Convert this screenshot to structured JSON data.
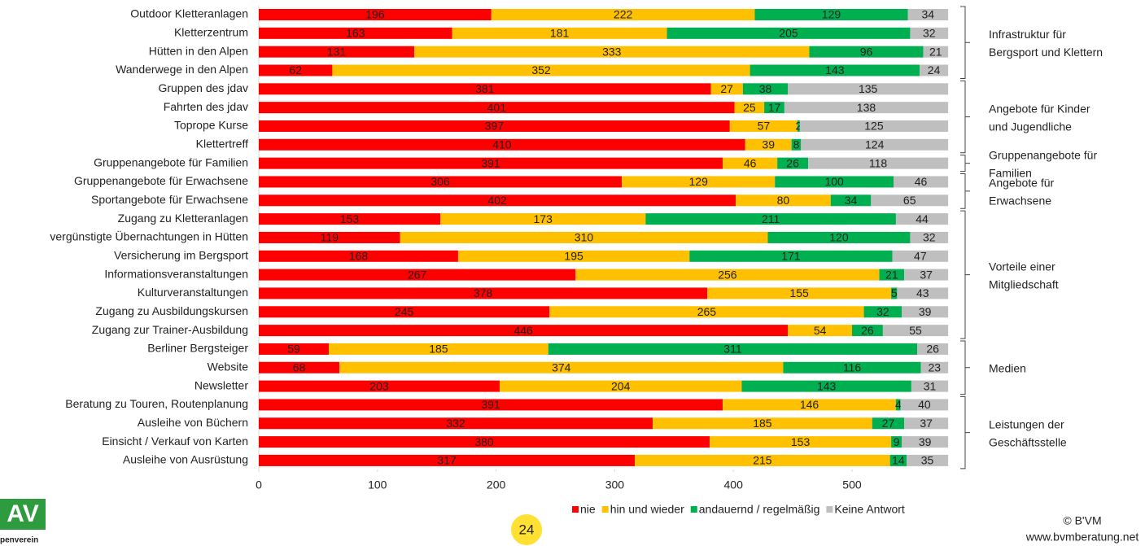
{
  "chart_data": {
    "type": "stacked_barh",
    "categories": [
      "Outdoor Kletteranlagen",
      "Kletterzentrum",
      "Hütten in den Alpen",
      "Wanderwege in den Alpen",
      "Gruppen des jdav",
      "Fahrten des jdav",
      "Toprope Kurse",
      "Klettertreff",
      "Gruppenangebote für Familien",
      "Gruppenangebote für Erwachsene",
      "Sportangebote für Erwachsene",
      "Zugang zu Kletteranlagen",
      "vergünstigte Übernachtungen in Hütten",
      "Versicherung im Bergsport",
      "Informationsveranstaltungen",
      "Kulturveranstaltungen",
      "Zugang zu Ausbildungskursen",
      "Zugang zur Trainer-Ausbildung",
      "Berliner Bergsteiger",
      "Website",
      "Newsletter",
      "Beratung zu Touren, Routenplanung",
      "Ausleihe von Büchern",
      "Einsicht / Verkauf von Karten",
      "Ausleihe von Ausrüstung"
    ],
    "series": [
      {
        "name": "nie",
        "color": "#ff0000",
        "values": [
          196,
          163,
          131,
          62,
          381,
          401,
          397,
          410,
          391,
          306,
          402,
          153,
          119,
          168,
          267,
          378,
          245,
          446,
          59,
          68,
          203,
          391,
          332,
          380,
          317
        ]
      },
      {
        "name": "hin und wieder",
        "color": "#ffc000",
        "values": [
          222,
          181,
          333,
          352,
          27,
          25,
          57,
          39,
          46,
          129,
          80,
          173,
          310,
          195,
          256,
          155,
          265,
          54,
          185,
          374,
          204,
          146,
          185,
          153,
          215
        ]
      },
      {
        "name": "andauernd / regelmäßig",
        "color": "#00b050",
        "values": [
          129,
          205,
          96,
          143,
          38,
          17,
          2,
          8,
          26,
          100,
          34,
          211,
          120,
          171,
          21,
          5,
          32,
          26,
          311,
          116,
          143,
          4,
          27,
          9,
          14
        ]
      },
      {
        "name": "Keine Antwort",
        "color": "#bfbfbf",
        "values": [
          34,
          32,
          21,
          24,
          135,
          138,
          125,
          124,
          118,
          46,
          65,
          44,
          32,
          47,
          37,
          43,
          39,
          55,
          26,
          23,
          31,
          40,
          37,
          39,
          35
        ]
      }
    ],
    "xlim": [
      0,
      583
    ],
    "xticks": [
      0,
      100,
      200,
      300,
      400,
      500
    ],
    "groups": [
      {
        "label": [
          "Infrastruktur für",
          "Bergsport und Klettern"
        ],
        "start": 0,
        "end": 3
      },
      {
        "label": [
          "Angebote für Kinder",
          "und Jugendliche"
        ],
        "start": 4,
        "end": 7
      },
      {
        "label": [
          "Gruppenangebote für",
          "Familien"
        ],
        "start": 8,
        "end": 8
      },
      {
        "label": [
          "Angebote für",
          "Erwachsene"
        ],
        "start": 9,
        "end": 10
      },
      {
        "label": [
          "Vorteile einer",
          "Mitgliedschaft"
        ],
        "start": 11,
        "end": 17
      },
      {
        "label": [
          "Medien"
        ],
        "start": 18,
        "end": 20
      },
      {
        "label": [
          "Leistungen der",
          "Geschäftsstelle"
        ],
        "start": 21,
        "end": 24
      }
    ],
    "legend": "bottom"
  },
  "page_number": "24",
  "logo": {
    "text": "AV",
    "subtext": "penverein"
  },
  "copyright": [
    "© B'VM",
    "www.bvmberatung.net"
  ]
}
